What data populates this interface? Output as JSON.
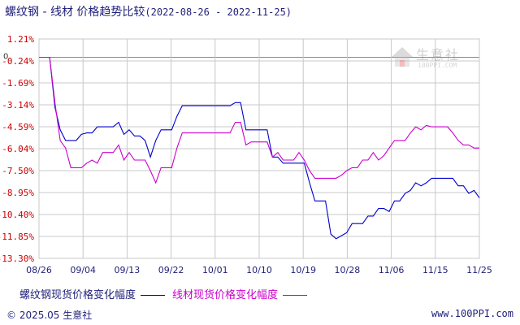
{
  "title": {
    "main": "螺纹钢 - 线材 价格趋势比较",
    "range": "(2022-08-26 - 2022-11-25)"
  },
  "legend": {
    "series1": "螺纹钢现货价格变化幅度",
    "series2": "线材现货价格变化幅度"
  },
  "footer": {
    "left": "© 2025.05 生意社",
    "right": "www.100PPI.com"
  },
  "watermark": {
    "name": "生意社",
    "url": "100PPI.COM"
  },
  "colors": {
    "series1": "#0000cc",
    "series2": "#cc00cc",
    "grid": "#c8c8c8",
    "tick_label": "#cc0000",
    "date_label": "#1f1f7a"
  },
  "chart_data": {
    "type": "line",
    "xlabel": "",
    "ylabel": "",
    "ylim": [
      -13.3,
      1.21
    ],
    "y_ticks": [
      "1.21%",
      "-0.24%",
      "-1.69%",
      "-3.14%",
      "-4.59%",
      "-6.04%",
      "-7.50%",
      "-8.95%",
      "-10.40%",
      "-11.85%",
      "-13.30%"
    ],
    "y_zero_label": "0",
    "x_ticks": [
      "08/26",
      "09/04",
      "09/13",
      "09/22",
      "10/01",
      "10/10",
      "10/19",
      "10/28",
      "11/06",
      "11/15",
      "11/25"
    ],
    "grid": true,
    "series": [
      {
        "name": "螺纹钢现货价格变化幅度",
        "color": "#0000cc",
        "points": [
          [
            0,
            0
          ],
          [
            1,
            0
          ],
          [
            2,
            0
          ],
          [
            3,
            -3.3
          ],
          [
            4,
            -4.8
          ],
          [
            5,
            -5.5
          ],
          [
            6,
            -5.5
          ],
          [
            7,
            -5.5
          ],
          [
            8,
            -5.1
          ],
          [
            9,
            -5.0
          ],
          [
            10,
            -5.0
          ],
          [
            11,
            -4.6
          ],
          [
            12,
            -4.6
          ],
          [
            13,
            -4.6
          ],
          [
            14,
            -4.6
          ],
          [
            15,
            -4.3
          ],
          [
            16,
            -5.1
          ],
          [
            17,
            -4.8
          ],
          [
            18,
            -5.2
          ],
          [
            19,
            -5.2
          ],
          [
            20,
            -5.5
          ],
          [
            21,
            -6.6
          ],
          [
            22,
            -5.5
          ],
          [
            23,
            -4.8
          ],
          [
            24,
            -4.8
          ],
          [
            25,
            -4.8
          ],
          [
            26,
            -3.9
          ],
          [
            27,
            -3.2
          ],
          [
            28,
            -3.2
          ],
          [
            29,
            -3.2
          ],
          [
            30,
            -3.2
          ],
          [
            31,
            -3.2
          ],
          [
            32,
            -3.2
          ],
          [
            33,
            -3.2
          ],
          [
            34,
            -3.2
          ],
          [
            35,
            -3.2
          ],
          [
            36,
            -3.2
          ],
          [
            37,
            -3.0
          ],
          [
            38,
            -3.0
          ],
          [
            39,
            -4.8
          ],
          [
            40,
            -4.8
          ],
          [
            41,
            -4.8
          ],
          [
            42,
            -4.8
          ],
          [
            43,
            -4.8
          ],
          [
            44,
            -6.6
          ],
          [
            45,
            -6.6
          ],
          [
            46,
            -7.0
          ],
          [
            47,
            -7.0
          ],
          [
            48,
            -7.0
          ],
          [
            49,
            -7.0
          ],
          [
            50,
            -7.0
          ],
          [
            51,
            -8.3
          ],
          [
            52,
            -9.5
          ],
          [
            53,
            -9.5
          ],
          [
            54,
            -9.5
          ],
          [
            55,
            -11.7
          ],
          [
            56,
            -12.0
          ],
          [
            57,
            -11.8
          ],
          [
            58,
            -11.6
          ],
          [
            59,
            -11.0
          ],
          [
            60,
            -11.0
          ],
          [
            61,
            -11.0
          ],
          [
            62,
            -10.5
          ],
          [
            63,
            -10.5
          ],
          [
            64,
            -10.0
          ],
          [
            65,
            -10.0
          ],
          [
            66,
            -10.2
          ],
          [
            67,
            -9.5
          ],
          [
            68,
            -9.5
          ],
          [
            69,
            -9.0
          ],
          [
            70,
            -8.8
          ],
          [
            71,
            -8.3
          ],
          [
            72,
            -8.5
          ],
          [
            73,
            -8.3
          ],
          [
            74,
            -8.0
          ],
          [
            75,
            -8.0
          ],
          [
            76,
            -8.0
          ],
          [
            77,
            -8.0
          ],
          [
            78,
            -8.0
          ],
          [
            79,
            -8.5
          ],
          [
            80,
            -8.5
          ],
          [
            81,
            -9.0
          ],
          [
            82,
            -8.8
          ],
          [
            83,
            -9.3
          ]
        ]
      },
      {
        "name": "线材现货价格变化幅度",
        "color": "#cc00cc",
        "points": [
          [
            0,
            0
          ],
          [
            1,
            0
          ],
          [
            2,
            0
          ],
          [
            3,
            -3.0
          ],
          [
            4,
            -5.5
          ],
          [
            5,
            -6.0
          ],
          [
            6,
            -7.3
          ],
          [
            7,
            -7.3
          ],
          [
            8,
            -7.3
          ],
          [
            9,
            -7.0
          ],
          [
            10,
            -6.8
          ],
          [
            11,
            -7.0
          ],
          [
            12,
            -6.3
          ],
          [
            13,
            -6.3
          ],
          [
            14,
            -6.3
          ],
          [
            15,
            -5.8
          ],
          [
            16,
            -6.8
          ],
          [
            17,
            -6.3
          ],
          [
            18,
            -6.8
          ],
          [
            19,
            -6.8
          ],
          [
            20,
            -6.8
          ],
          [
            21,
            -7.5
          ],
          [
            22,
            -8.3
          ],
          [
            23,
            -7.3
          ],
          [
            24,
            -7.3
          ],
          [
            25,
            -7.3
          ],
          [
            26,
            -6.0
          ],
          [
            27,
            -5.0
          ],
          [
            28,
            -5.0
          ],
          [
            29,
            -5.0
          ],
          [
            30,
            -5.0
          ],
          [
            31,
            -5.0
          ],
          [
            32,
            -5.0
          ],
          [
            33,
            -5.0
          ],
          [
            34,
            -5.0
          ],
          [
            35,
            -5.0
          ],
          [
            36,
            -5.0
          ],
          [
            37,
            -4.3
          ],
          [
            38,
            -4.3
          ],
          [
            39,
            -5.8
          ],
          [
            40,
            -5.6
          ],
          [
            41,
            -5.6
          ],
          [
            42,
            -5.6
          ],
          [
            43,
            -5.6
          ],
          [
            44,
            -6.6
          ],
          [
            45,
            -6.3
          ],
          [
            46,
            -6.8
          ],
          [
            47,
            -6.8
          ],
          [
            48,
            -6.8
          ],
          [
            49,
            -6.3
          ],
          [
            50,
            -6.8
          ],
          [
            51,
            -7.5
          ],
          [
            52,
            -8.0
          ],
          [
            53,
            -8.0
          ],
          [
            54,
            -8.0
          ],
          [
            55,
            -8.0
          ],
          [
            56,
            -8.0
          ],
          [
            57,
            -7.8
          ],
          [
            58,
            -7.5
          ],
          [
            59,
            -7.3
          ],
          [
            60,
            -7.3
          ],
          [
            61,
            -6.8
          ],
          [
            62,
            -6.8
          ],
          [
            63,
            -6.3
          ],
          [
            64,
            -6.8
          ],
          [
            65,
            -6.5
          ],
          [
            66,
            -6.0
          ],
          [
            67,
            -5.5
          ],
          [
            68,
            -5.5
          ],
          [
            69,
            -5.5
          ],
          [
            70,
            -5.0
          ],
          [
            71,
            -4.6
          ],
          [
            72,
            -4.8
          ],
          [
            73,
            -4.5
          ],
          [
            74,
            -4.6
          ],
          [
            75,
            -4.6
          ],
          [
            76,
            -4.6
          ],
          [
            77,
            -4.6
          ],
          [
            78,
            -5.0
          ],
          [
            79,
            -5.5
          ],
          [
            80,
            -5.8
          ],
          [
            81,
            -5.8
          ],
          [
            82,
            -6.0
          ],
          [
            83,
            -6.0
          ]
        ]
      }
    ]
  }
}
